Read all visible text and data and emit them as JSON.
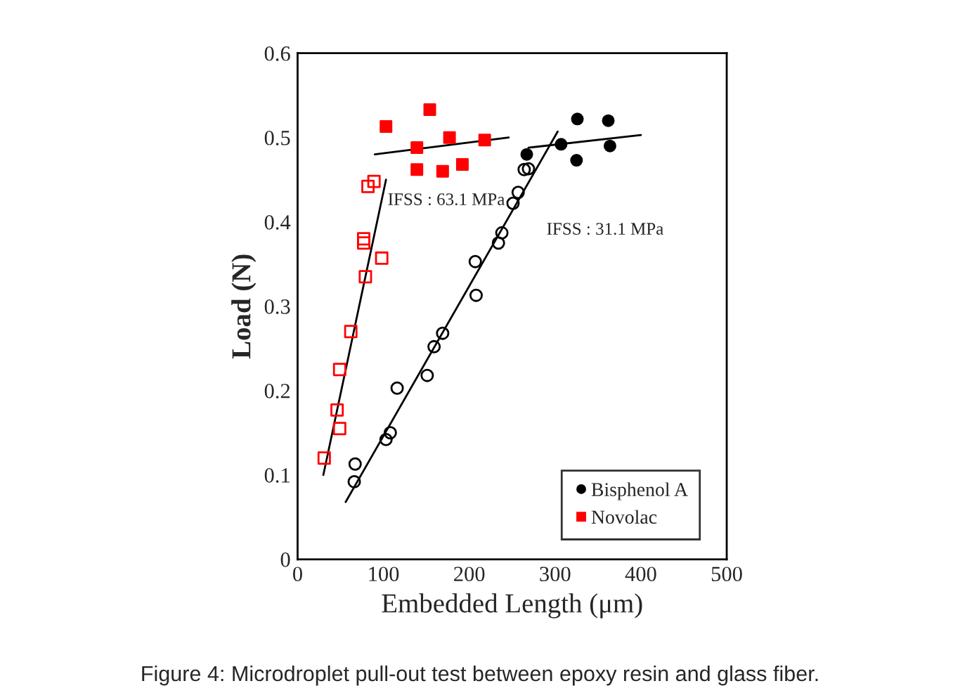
{
  "chart_data": {
    "type": "scatter",
    "xlabel": "Embedded Length (μm)",
    "ylabel": "Load (N)",
    "xlim": [
      0,
      500
    ],
    "xticks": [
      0,
      100,
      200,
      300,
      400,
      500
    ],
    "ylim": [
      0,
      0.6
    ],
    "yticks": [
      0,
      0.1,
      0.2,
      0.3,
      0.4,
      0.5,
      0.6
    ],
    "grid": false,
    "legend": "bottom right",
    "series": [
      {
        "name": "Bisphenol A",
        "color": "#000000",
        "marker": "circle",
        "x": [
          267,
          307,
          326,
          362,
          325,
          364
        ],
        "values": [
          0.48,
          0.492,
          0.522,
          0.52,
          0.473,
          0.49
        ]
      },
      {
        "name": "Novolac",
        "color": "#ff0000",
        "marker": "square",
        "x": [
          103,
          154,
          139,
          177,
          218,
          139,
          169,
          192
        ],
        "values": [
          0.513,
          0.533,
          0.488,
          0.5,
          0.497,
          0.462,
          0.46,
          0.468
        ]
      },
      {
        "color": "#000000",
        "marker": "circle",
        "x": [
          66,
          67,
          103,
          108,
          116,
          151,
          169,
          159,
          208,
          207,
          234,
          238,
          251,
          257,
          264,
          269
        ],
        "values": [
          0.092,
          0.113,
          0.142,
          0.15,
          0.203,
          0.218,
          0.268,
          0.252,
          0.313,
          0.353,
          0.375,
          0.387,
          0.422,
          0.435,
          0.462,
          0.463
        ]
      },
      {
        "color": "#ff0000",
        "marker": "square",
        "x": [
          31,
          46,
          49,
          49,
          62,
          79,
          77,
          77,
          98,
          82,
          89
        ],
        "values": [
          0.12,
          0.177,
          0.155,
          0.225,
          0.27,
          0.335,
          0.38,
          0.375,
          0.357,
          0.442,
          0.448
        ]
      },
      {
        "type": "line",
        "color": "#000000",
        "marker": "none",
        "x": [
          30,
          103
        ],
        "values": [
          0.1,
          0.45
        ]
      },
      {
        "type": "line",
        "color": "#000000",
        "marker": "none",
        "x": [
          90,
          246
        ],
        "values": [
          0.48,
          0.5
        ]
      },
      {
        "type": "line",
        "color": "#000000",
        "marker": "none",
        "x": [
          56,
          303
        ],
        "values": [
          0.068,
          0.507
        ]
      },
      {
        "type": "line",
        "color": "#000000",
        "marker": "none",
        "x": [
          269,
          400
        ],
        "values": [
          0.488,
          0.503
        ]
      }
    ],
    "annotations": [
      {
        "text": "IFSS : 63.1 MPa",
        "x": 105,
        "y": 0.425
      },
      "IFSS : 31.1 MPa",
      "Figure 4: Microdroplet pull-out test between epoxy resin and glass fiber."
    ]
  }
}
